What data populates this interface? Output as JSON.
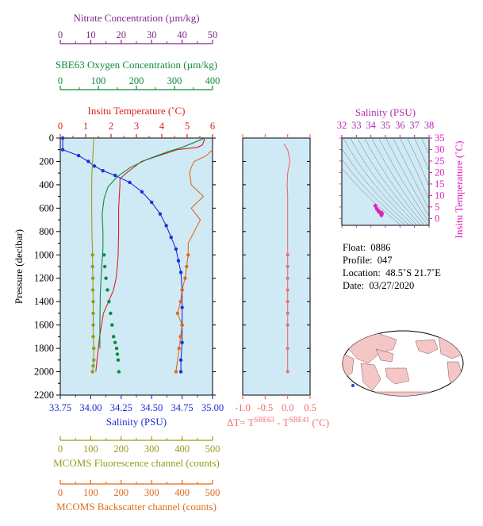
{
  "colors": {
    "background": "#ffffff",
    "panel_bg": "#cfeaf5",
    "nitrate": "#7f2a8a",
    "oxygen": "#0f8a3a",
    "temperature": "#dd1f1f",
    "salinity": "#1f2fd6",
    "fluorescence": "#9a9a1a",
    "backscatter": "#e06a1a",
    "delta_t": "#f06a6a",
    "ts_salinity": "#b32fb3",
    "ts_temperature": "#e020c0",
    "map_land": "#f4c6c6",
    "map_ocean": "#ffffff"
  },
  "info": {
    "float_label": "Float:",
    "float_value": "0886",
    "profile_label": "Profile:",
    "profile_value": "047",
    "location_label": "Location:",
    "location_value": "48.5˚S 21.7˚E",
    "date_label": "Date:",
    "date_value": "03/27/2020"
  },
  "chart_data": [
    {
      "type": "line",
      "name": "profile-panel",
      "ylabel": "Pressure (decibar)",
      "ylim": [
        0,
        2200
      ],
      "yticks": [
        "0",
        "200",
        "400",
        "600",
        "800",
        "1000",
        "1200",
        "1400",
        "1600",
        "1800",
        "2000",
        "2200"
      ],
      "grid": false,
      "axes": {
        "nitrate": {
          "label": "Nitrate Concentration (µm/kg)",
          "range": [
            0,
            50
          ],
          "ticks": [
            "0",
            "10",
            "20",
            "30",
            "40",
            "50"
          ]
        },
        "oxygen": {
          "label": "SBE63 Oxygen Concentration (µm/kg)",
          "range": [
            0,
            400
          ],
          "ticks": [
            "0",
            "100",
            "200",
            "300",
            "400"
          ]
        },
        "temperature": {
          "label": "Insitu Temperature (˚C)",
          "range": [
            0,
            6
          ],
          "ticks": [
            "0",
            "1",
            "2",
            "3",
            "4",
            "5",
            "6"
          ]
        },
        "salinity": {
          "label": "Salinity (PSU)",
          "range": [
            33.75,
            35.0
          ],
          "ticks": [
            "33.75",
            "34.00",
            "34.25",
            "34.50",
            "34.75",
            "35.00"
          ]
        },
        "fluorescence": {
          "label": "MCOMS Fluorescence channel (counts)",
          "range": [
            0,
            500
          ],
          "ticks": [
            "0",
            "100",
            "200",
            "300",
            "400",
            "500"
          ]
        },
        "backscatter": {
          "label": "MCOMS Backscatter channel (counts)",
          "range": [
            0,
            500
          ],
          "ticks": [
            "0",
            "100",
            "200",
            "300",
            "400",
            "500"
          ]
        }
      },
      "series": [
        {
          "key": "temperature",
          "x": [
            5.7,
            5.6,
            5.4,
            4.6,
            3.2,
            2.6,
            2.35,
            2.35,
            2.3,
            2.3,
            2.28,
            2.25,
            2.2,
            2.1,
            1.9,
            1.7,
            1.55,
            1.45,
            1.4
          ],
          "y": [
            0,
            60,
            80,
            100,
            200,
            300,
            350,
            400,
            600,
            800,
            1000,
            1100,
            1200,
            1300,
            1400,
            1500,
            1700,
            1900,
            2000
          ]
        },
        {
          "key": "oxygen",
          "x": [
            380,
            320,
            280,
            230,
            185,
            150,
            125,
            115,
            110,
            112,
            112,
            110,
            108,
            105,
            104,
            104
          ],
          "y": [
            0,
            80,
            120,
            180,
            250,
            330,
            420,
            520,
            650,
            800,
            950,
            1050,
            1150,
            1350,
            1600,
            1800
          ]
        },
        {
          "key": "salinity",
          "x": [
            33.77,
            33.77,
            33.9,
            33.98,
            34.03,
            34.1,
            34.2,
            34.32,
            34.42,
            34.5,
            34.57,
            34.62,
            34.66,
            34.7,
            34.72,
            34.74,
            34.75,
            34.75,
            34.75,
            34.75,
            34.74,
            34.74
          ],
          "y": [
            0,
            100,
            150,
            200,
            240,
            280,
            320,
            380,
            460,
            550,
            650,
            750,
            850,
            950,
            1050,
            1150,
            1300,
            1450,
            1600,
            1750,
            1900,
            2000
          ],
          "markers": true
        },
        {
          "key": "oxygen_dots",
          "x": [
            115,
            117,
            120,
            124,
            128,
            132,
            136,
            140,
            144,
            148,
            150,
            152,
            154
          ],
          "y": [
            1000,
            1100,
            1200,
            1300,
            1400,
            1500,
            1600,
            1700,
            1750,
            1800,
            1850,
            1900,
            2000
          ],
          "markers": true
        },
        {
          "key": "fluorescence",
          "x": [
            110,
            108,
            106,
            104,
            103,
            103,
            104,
            106,
            106,
            107,
            107,
            108,
            108,
            108,
            108,
            110,
            110,
            108,
            106
          ],
          "y": [
            0,
            100,
            200,
            300,
            400,
            600,
            800,
            1000,
            1100,
            1200,
            1300,
            1400,
            1500,
            1600,
            1700,
            1800,
            1900,
            1950,
            2000
          ],
          "markers_from": 7
        },
        {
          "key": "backscatter",
          "x": [
            500,
            480,
            440,
            430,
            425,
            430,
            470,
            430,
            460,
            440,
            420,
            420,
            415,
            410,
            400,
            395,
            385,
            400,
            395,
            390,
            380
          ],
          "y": [
            100,
            150,
            200,
            250,
            300,
            400,
            500,
            600,
            700,
            800,
            900,
            1000,
            1100,
            1200,
            1300,
            1400,
            1500,
            1600,
            1700,
            1800,
            2000
          ],
          "markers_from": 11
        }
      ]
    },
    {
      "type": "line",
      "name": "delta-t-panel",
      "xlabel": "ΔT= T(SBE63) - T(SBE41) (˚C)",
      "xlabel_main": "ΔT= T",
      "xlabel_sub1": "SBE63",
      "xlabel_mid": " - T",
      "xlabel_sub2": "SBE41",
      "xlabel_unit": " (˚C)",
      "xlim": [
        -1.0,
        0.5
      ],
      "xticks": [
        "-1.0",
        "-0.5",
        "0.0",
        "0.5"
      ],
      "ylim": [
        0,
        2200
      ],
      "series": [
        {
          "x": [
            -0.08,
            0.0,
            0.03,
            0.05,
            0.0,
            -0.01,
            0.0,
            0.0,
            0.0,
            0.0,
            0.0,
            0.0,
            0.0,
            0.0,
            0.0,
            0.0,
            0.0,
            0.0,
            0.0,
            0.0
          ],
          "y": [
            50,
            100,
            150,
            200,
            300,
            400,
            500,
            600,
            700,
            800,
            900,
            1000,
            1100,
            1200,
            1300,
            1400,
            1500,
            1600,
            1800,
            2000
          ],
          "markers_from": 11
        }
      ]
    },
    {
      "type": "scatter",
      "name": "ts-diagram",
      "xlabel": "Salinity (PSU)",
      "ylabel": "Insitu Temperature (˚C)",
      "xlim": [
        32,
        38
      ],
      "ylim": [
        -3,
        35
      ],
      "xticks": [
        "32",
        "33",
        "34",
        "35",
        "36",
        "37",
        "38"
      ],
      "yticks": [
        "0",
        "5",
        "10",
        "15",
        "20",
        "25",
        "30",
        "35"
      ],
      "x": [
        34.3,
        34.4,
        34.5,
        34.55,
        34.6,
        34.65,
        34.7,
        34.72,
        34.74,
        34.75,
        34.75,
        34.74,
        34.73,
        34.72
      ],
      "y": [
        5.5,
        4.2,
        3.4,
        2.9,
        2.7,
        2.6,
        2.5,
        2.4,
        2.3,
        2.2,
        2.0,
        1.8,
        1.6,
        1.4
      ]
    }
  ]
}
